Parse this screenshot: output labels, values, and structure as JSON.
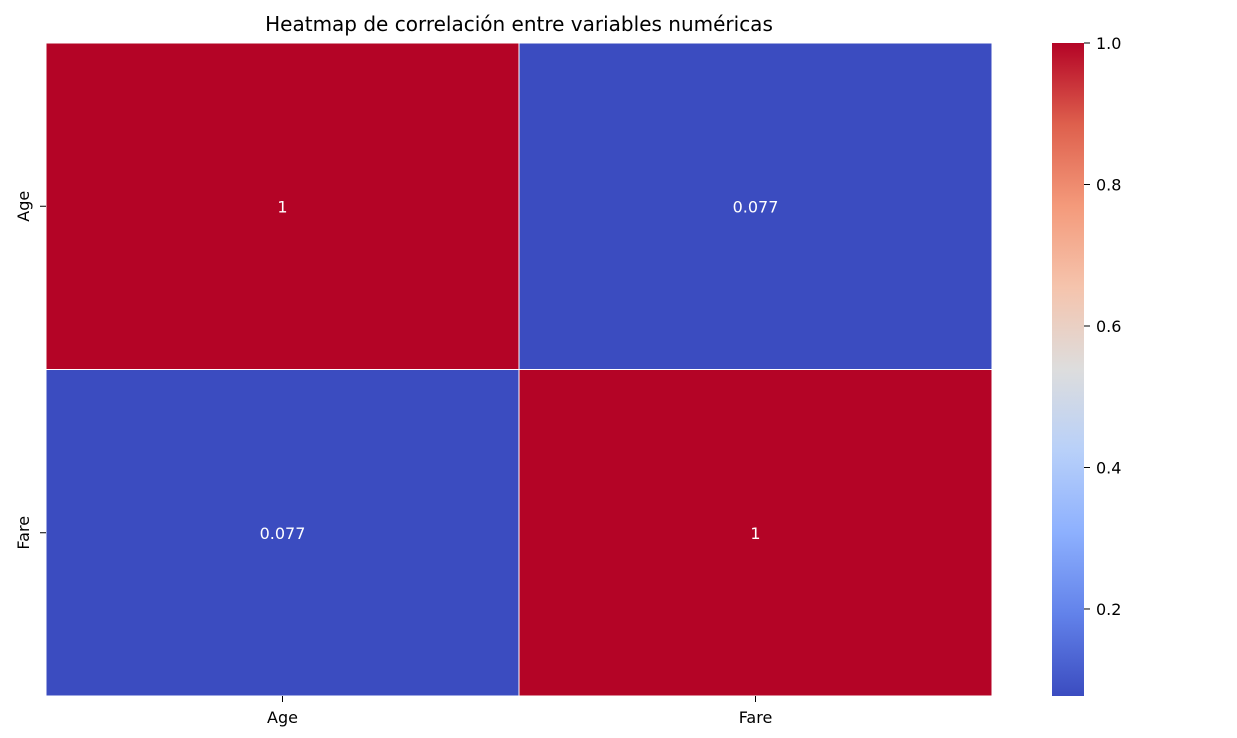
{
  "chart_data": {
    "type": "heatmap",
    "title": "Heatmap de correlación entre variables numéricas",
    "xlabel": "",
    "ylabel": "",
    "x_categories": [
      "Age",
      "Fare"
    ],
    "y_categories": [
      "Age",
      "Fare"
    ],
    "values": [
      [
        1,
        0.077
      ],
      [
        0.077,
        1
      ]
    ],
    "cell_labels": [
      [
        "1",
        "0.077"
      ],
      [
        "0.077",
        "1"
      ]
    ],
    "colormap": "coolwarm",
    "colorbar": {
      "vmin": 0.077,
      "vmax": 1.0,
      "ticks": [
        0.2,
        0.4,
        0.6,
        0.8,
        1.0
      ],
      "tick_labels": [
        "0.2",
        "0.4",
        "0.6",
        "0.8",
        "1.0"
      ]
    },
    "grid": false,
    "colors": {
      "high": "#b40426",
      "low": "#3b4cc0",
      "cell_text": "#ffffff",
      "cell_border": "#ffffff"
    }
  }
}
